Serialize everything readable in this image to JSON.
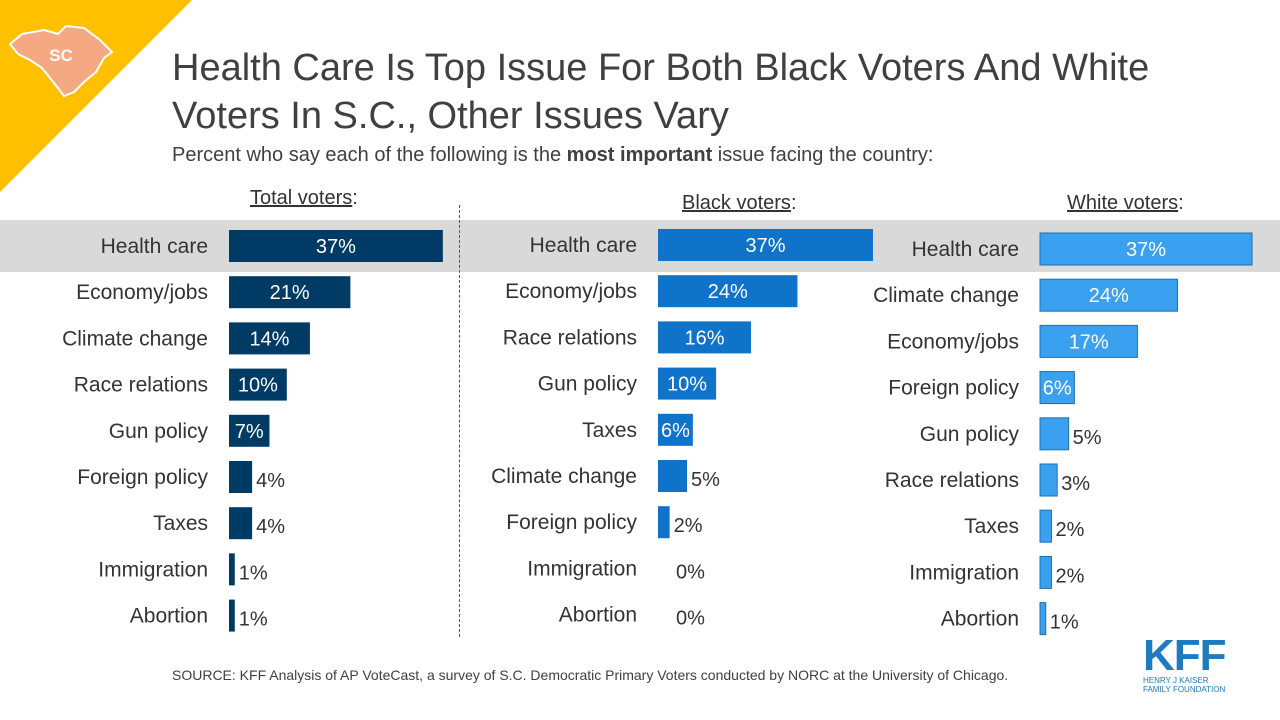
{
  "badge": {
    "state": "SC",
    "color": "#ffc000",
    "shape_color": "#f4a983"
  },
  "title": "Health Care Is Top Issue For Both Black Voters And White Voters In S.C., Other Issues Vary",
  "subtitle": {
    "before": "Percent who say each of the following is the ",
    "bold": "most important",
    "after": " issue facing the country:"
  },
  "source": "SOURCE: KFF Analysis of AP VoteCast, a survey of S.C. Democratic Primary Voters conducted by NORC at the University of Chicago.",
  "logo": {
    "mark": "KFF",
    "line1": "HENRY J KAISER",
    "line2": "FAMILY FOUNDATION",
    "color": "#1f7bc1"
  },
  "colors": {
    "total": "#003b66",
    "black": "#0f73c9",
    "white": "#3aa1f0",
    "highlight": "#d9d9d9"
  },
  "chart_data": [
    {
      "type": "bar",
      "orientation": "horizontal",
      "title": "Total voters",
      "categories": [
        "Health care",
        "Economy/jobs",
        "Climate change",
        "Race relations",
        "Gun policy",
        "Foreign policy",
        "Taxes",
        "Immigration",
        "Abortion"
      ],
      "values": [
        37,
        21,
        14,
        10,
        7,
        4,
        4,
        1,
        1
      ],
      "labels": [
        "37%",
        "21%",
        "14%",
        "10%",
        "7%",
        "4%",
        "4%",
        "1%",
        "1%"
      ],
      "unit": "%"
    },
    {
      "type": "bar",
      "orientation": "horizontal",
      "title": "Black voters",
      "categories": [
        "Health care",
        "Economy/jobs",
        "Race relations",
        "Gun policy",
        "Taxes",
        "Climate change",
        "Foreign policy",
        "Immigration",
        "Abortion"
      ],
      "values": [
        37,
        24,
        16,
        10,
        6,
        5,
        2,
        0,
        0
      ],
      "labels": [
        "37%",
        "24%",
        "16%",
        "10%",
        "6%",
        "5%",
        "2%",
        "0%",
        "0%"
      ],
      "unit": "%"
    },
    {
      "type": "bar",
      "orientation": "horizontal",
      "title": "White voters",
      "categories": [
        "Health care",
        "Climate change",
        "Economy/jobs",
        "Foreign policy",
        "Gun policy",
        "Race relations",
        "Taxes",
        "Immigration",
        "Abortion"
      ],
      "values": [
        37,
        24,
        17,
        6,
        5,
        3,
        2,
        2,
        1
      ],
      "labels": [
        "37%",
        "24%",
        "17%",
        "6%",
        "5%",
        "3%",
        "2%",
        "2%",
        "1%"
      ],
      "unit": "%"
    }
  ]
}
